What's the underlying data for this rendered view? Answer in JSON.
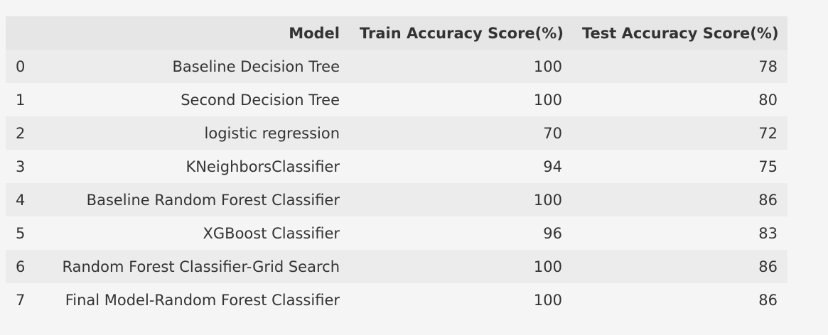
{
  "chart_data": {
    "type": "table",
    "columns": [
      "",
      "Model",
      "Train Accuracy Score(%)",
      "Test Accuracy Score(%)"
    ],
    "rows": [
      {
        "index": "0",
        "model": "Baseline Decision Tree",
        "train": "100",
        "test": "78"
      },
      {
        "index": "1",
        "model": "Second Decision Tree",
        "train": "100",
        "test": "80"
      },
      {
        "index": "2",
        "model": "logistic regression",
        "train": "70",
        "test": "72"
      },
      {
        "index": "3",
        "model": "KNeighborsClassifier",
        "train": "94",
        "test": "75"
      },
      {
        "index": "4",
        "model": "Baseline Random Forest Classifier",
        "train": "100",
        "test": "86"
      },
      {
        "index": "5",
        "model": "XGBoost Classifier",
        "train": "96",
        "test": "83"
      },
      {
        "index": "6",
        "model": "Random Forest Classifier-Grid Search",
        "train": "100",
        "test": "86"
      },
      {
        "index": "7",
        "model": "Final Model-Random Forest Classifier",
        "train": "100",
        "test": "86"
      }
    ]
  },
  "colors": {
    "header_bg": "#e6e6e6",
    "row_odd_bg": "#ececec",
    "row_even_bg": "#f5f5f5",
    "text": "#333333"
  }
}
